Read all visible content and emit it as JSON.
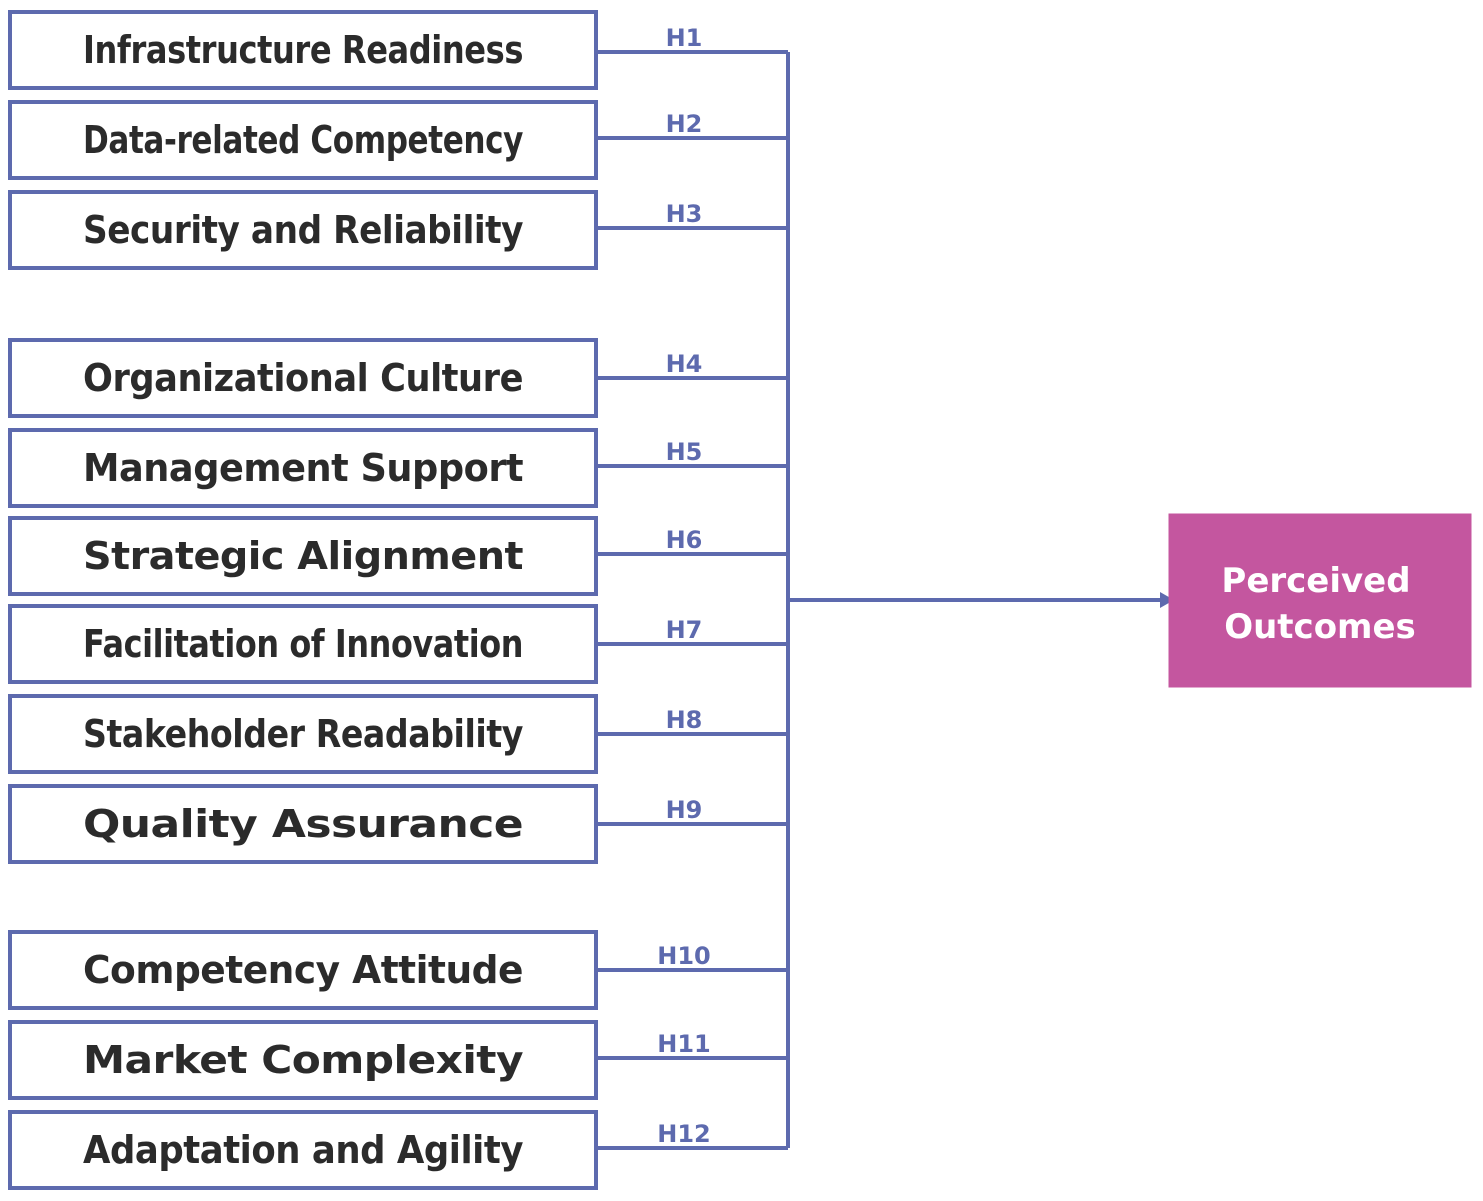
{
  "colors": {
    "box_border": "#5d6aae",
    "connector": "#5d6aae",
    "factor_text": "#2b2b2b",
    "outcome_fill": "#c4569f",
    "outcome_text": "#ffffff"
  },
  "factors": [
    {
      "label": "Infrastructure Readiness",
      "hypothesis": "H1"
    },
    {
      "label": "Data-related Competency",
      "hypothesis": "H2"
    },
    {
      "label": "Security and Reliability",
      "hypothesis": "H3"
    },
    {
      "label": "Organizational Culture",
      "hypothesis": "H4"
    },
    {
      "label": "Management Support",
      "hypothesis": "H5"
    },
    {
      "label": "Strategic Alignment",
      "hypothesis": "H6"
    },
    {
      "label": "Facilitation of Innovation",
      "hypothesis": "H7"
    },
    {
      "label": "Stakeholder Readability",
      "hypothesis": "H8"
    },
    {
      "label": "Quality Assurance",
      "hypothesis": "H9"
    },
    {
      "label": "Competency Attitude",
      "hypothesis": "H10"
    },
    {
      "label": "Market Complexity",
      "hypothesis": "H11"
    },
    {
      "label": "Adaptation and Agility",
      "hypothesis": "H12"
    }
  ],
  "outcome": {
    "line1": "Perceived",
    "line2": "Outcomes"
  }
}
